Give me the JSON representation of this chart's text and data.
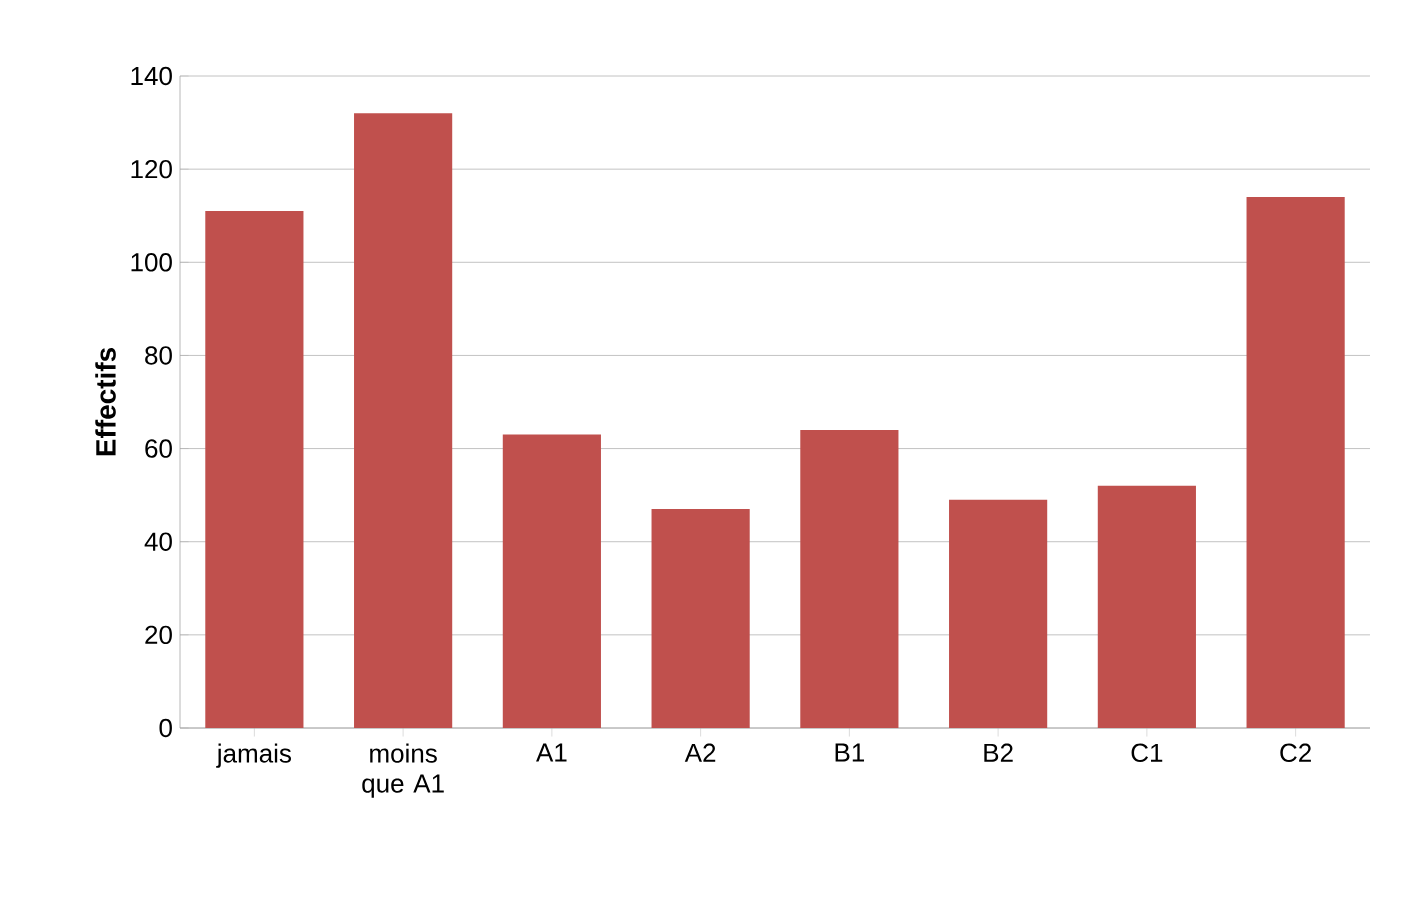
{
  "chart_data": {
    "type": "bar",
    "ylabel": "Effectifs",
    "categories": [
      "jamais",
      "moins que A1",
      "A1",
      "A2",
      "B1",
      "B2",
      "C1",
      "C2"
    ],
    "values": [
      111,
      132,
      63,
      47,
      64,
      49,
      52,
      114
    ],
    "color": "#c0504d",
    "ylim": [
      0,
      140
    ],
    "yticks": [
      0,
      20,
      40,
      60,
      80,
      100,
      120,
      140
    ],
    "grid": "y"
  }
}
